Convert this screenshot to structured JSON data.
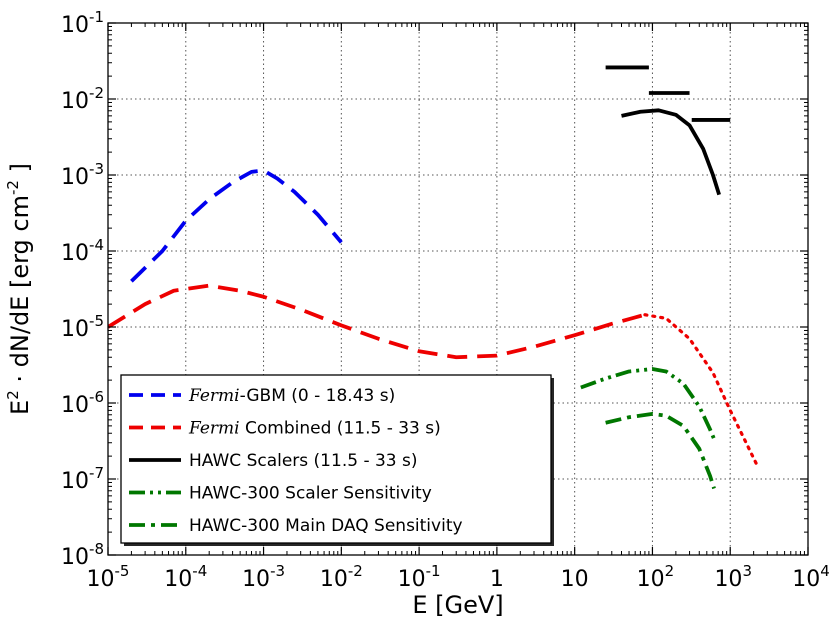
{
  "chart_data": {
    "type": "line",
    "xlabel": "E [GeV]",
    "ylabel": "E² · dN/dE [erg cm⁻²]",
    "ylabel_parts": {
      "base": "E",
      "sup1": "2",
      "mid": " · dN/dE [erg cm",
      "sup2": "-2",
      "end": " ]"
    },
    "xscale": "log",
    "yscale": "log",
    "xlim": [
      1e-05,
      10000.0
    ],
    "ylim": [
      1e-08,
      0.1
    ],
    "grid": true,
    "legend_position": "bottom-left",
    "x_ticks": [
      {
        "value": 1e-05,
        "base": "10",
        "exp": "-5"
      },
      {
        "value": 0.0001,
        "base": "10",
        "exp": "-4"
      },
      {
        "value": 0.001,
        "base": "10",
        "exp": "-3"
      },
      {
        "value": 0.01,
        "base": "10",
        "exp": "-2"
      },
      {
        "value": 0.1,
        "base": "10",
        "exp": "-1"
      },
      {
        "value": 1,
        "base": "1",
        "exp": ""
      },
      {
        "value": 10,
        "base": "10",
        "exp": ""
      },
      {
        "value": 100,
        "base": "10",
        "exp": "2"
      },
      {
        "value": 1000,
        "base": "10",
        "exp": "3"
      },
      {
        "value": 10000,
        "base": "10",
        "exp": "4"
      }
    ],
    "y_ticks": [
      {
        "value": 1e-08,
        "base": "10",
        "exp": "-8"
      },
      {
        "value": 1e-07,
        "base": "10",
        "exp": "-7"
      },
      {
        "value": 1e-06,
        "base": "10",
        "exp": "-6"
      },
      {
        "value": 1e-05,
        "base": "10",
        "exp": "-5"
      },
      {
        "value": 0.0001,
        "base": "10",
        "exp": "-4"
      },
      {
        "value": 0.001,
        "base": "10",
        "exp": "-3"
      },
      {
        "value": 0.01,
        "base": "10",
        "exp": "-2"
      },
      {
        "value": 0.1,
        "base": "10",
        "exp": "-1"
      }
    ],
    "series": [
      {
        "name": "Fermi-GBM (0 - 18.43 s)",
        "legend_italic": "Fermi",
        "legend_rest": "-GBM (0 - 18.43 s)",
        "color": "#0000ee",
        "dash": "solid-dash",
        "segments": [
          {
            "style": "dashed",
            "points": [
              [
                2e-05,
                4e-05
              ],
              [
                5e-05,
                0.0001
              ],
              [
                0.0001,
                0.00025
              ],
              [
                0.0002,
                0.00048
              ],
              [
                0.0004,
                0.0008
              ],
              [
                0.0007,
                0.0011
              ],
              [
                0.001,
                0.00115
              ],
              [
                0.0015,
                0.0009
              ],
              [
                0.0025,
                0.0006
              ],
              [
                0.005,
                0.0003
              ],
              [
                0.01,
                0.00013
              ]
            ]
          }
        ]
      },
      {
        "name": "Fermi Combined (11.5 - 33 s)",
        "legend_italic": "Fermi",
        "legend_rest": " Combined (11.5 - 33 s)",
        "color": "#ee0000",
        "dash": "dashed",
        "segments": [
          {
            "style": "dashed",
            "points": [
              [
                1e-05,
                1e-05
              ],
              [
                3e-05,
                2e-05
              ],
              [
                7e-05,
                3e-05
              ],
              [
                0.0002,
                3.5e-05
              ],
              [
                0.0005,
                3e-05
              ],
              [
                0.001,
                2.5e-05
              ],
              [
                0.003,
                1.7e-05
              ],
              [
                0.01,
                1.05e-05
              ],
              [
                0.03,
                7e-06
              ],
              [
                0.1,
                4.8e-06
              ],
              [
                0.3,
                4e-06
              ],
              [
                1,
                4.2e-06
              ],
              [
                3,
                5.5e-06
              ],
              [
                10,
                7.8e-06
              ],
              [
                30,
                1.1e-05
              ],
              [
                80,
                1.45e-05
              ]
            ]
          },
          {
            "style": "dotted",
            "points": [
              [
                80,
                1.45e-05
              ],
              [
                150,
                1.3e-05
              ],
              [
                300,
                7e-06
              ],
              [
                600,
                2.5e-06
              ],
              [
                1000,
                8e-07
              ],
              [
                1600,
                3e-07
              ],
              [
                2300,
                1.4e-07
              ]
            ]
          }
        ]
      },
      {
        "name": "HAWC Scalers (11.5 - 33 s)",
        "legend_italic": "",
        "legend_rest": "HAWC Scalers (11.5 - 33 s)",
        "color": "#000000",
        "dash": "solid",
        "segments": [
          {
            "style": "solid",
            "points": [
              [
                25,
                0.026
              ],
              [
                90,
                0.026
              ]
            ]
          },
          {
            "style": "solid",
            "points": [
              [
                90,
                0.012
              ],
              [
                300,
                0.012
              ]
            ]
          },
          {
            "style": "solid",
            "points": [
              [
                320,
                0.0053
              ],
              [
                1000,
                0.0053
              ]
            ]
          },
          {
            "style": "solid",
            "points": [
              [
                40,
                0.006
              ],
              [
                70,
                0.0068
              ],
              [
                120,
                0.0071
              ],
              [
                200,
                0.0062
              ],
              [
                300,
                0.0045
              ],
              [
                450,
                0.0022
              ],
              [
                600,
                0.001
              ],
              [
                720,
                0.00055
              ]
            ]
          }
        ]
      },
      {
        "name": "HAWC-300 Scaler Sensitivity",
        "legend_italic": "",
        "legend_rest": "HAWC-300 Scaler Sensitivity",
        "color": "#007700",
        "dash": "dash-dot-dot",
        "segments": [
          {
            "style": "dashdotdot",
            "points": [
              [
                12,
                1.6e-06
              ],
              [
                25,
                2.1e-06
              ],
              [
                50,
                2.6e-06
              ],
              [
                100,
                2.8e-06
              ],
              [
                150,
                2.6e-06
              ],
              [
                250,
                1.8e-06
              ],
              [
                400,
                9e-07
              ],
              [
                550,
                4.5e-07
              ],
              [
                650,
                3e-07
              ]
            ]
          }
        ]
      },
      {
        "name": "HAWC-300 Main DAQ Sensitivity",
        "legend_italic": "",
        "legend_rest": "HAWC-300 Main DAQ Sensitivity",
        "color": "#007700",
        "dash": "dash-dot",
        "segments": [
          {
            "style": "dashdot",
            "points": [
              [
                25,
                5.5e-07
              ],
              [
                50,
                6.5e-07
              ],
              [
                100,
                7.2e-07
              ],
              [
                150,
                6.8e-07
              ],
              [
                250,
                5e-07
              ],
              [
                400,
                2.5e-07
              ],
              [
                550,
                1.1e-07
              ],
              [
                620,
                7.5e-08
              ]
            ]
          }
        ]
      }
    ]
  }
}
